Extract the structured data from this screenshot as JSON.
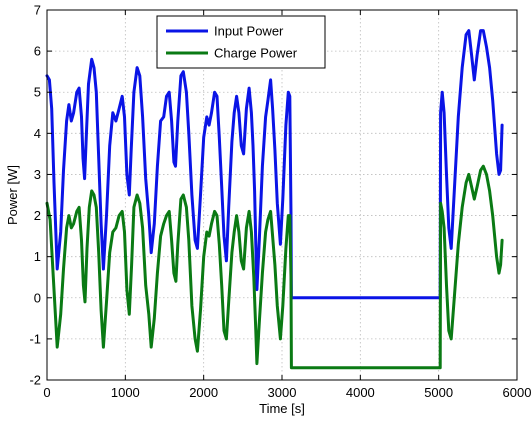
{
  "chart_data": {
    "type": "line",
    "xlabel": "Time [s]",
    "ylabel": "Power [W]",
    "xlim": [
      0,
      6000
    ],
    "ylim": [
      -2,
      7
    ],
    "xticks": [
      "0",
      "1000",
      "2000",
      "3000",
      "4000",
      "5000",
      "6000"
    ],
    "yticks": [
      "-2",
      "-1",
      "0",
      "1",
      "2",
      "3",
      "4",
      "5",
      "6",
      "7"
    ],
    "grid": true,
    "legend_position": "top-center",
    "series": [
      {
        "name": "Input Power",
        "color": "#0a14e6",
        "points": [
          [
            0,
            5.4
          ],
          [
            30,
            5.3
          ],
          [
            60,
            4.6
          ],
          [
            90,
            2.8
          ],
          [
            130,
            0.7
          ],
          [
            175,
            1.6
          ],
          [
            210,
            3.1
          ],
          [
            250,
            4.3
          ],
          [
            280,
            4.7
          ],
          [
            310,
            4.3
          ],
          [
            340,
            4.5
          ],
          [
            380,
            5.0
          ],
          [
            410,
            5.1
          ],
          [
            440,
            4.4
          ],
          [
            460,
            3.4
          ],
          [
            480,
            2.9
          ],
          [
            505,
            4.1
          ],
          [
            530,
            5.2
          ],
          [
            570,
            5.8
          ],
          [
            600,
            5.6
          ],
          [
            630,
            5.0
          ],
          [
            660,
            3.4
          ],
          [
            690,
            1.8
          ],
          [
            720,
            0.7
          ],
          [
            760,
            2.0
          ],
          [
            800,
            3.7
          ],
          [
            840,
            4.5
          ],
          [
            880,
            4.3
          ],
          [
            920,
            4.6
          ],
          [
            960,
            4.9
          ],
          [
            990,
            4.4
          ],
          [
            1020,
            3.0
          ],
          [
            1050,
            2.5
          ],
          [
            1075,
            3.6
          ],
          [
            1110,
            5.0
          ],
          [
            1150,
            5.6
          ],
          [
            1185,
            5.4
          ],
          [
            1220,
            4.4
          ],
          [
            1260,
            2.9
          ],
          [
            1300,
            2.0
          ],
          [
            1330,
            1.1
          ],
          [
            1370,
            1.8
          ],
          [
            1410,
            3.2
          ],
          [
            1450,
            4.3
          ],
          [
            1490,
            4.4
          ],
          [
            1525,
            4.9
          ],
          [
            1560,
            5.0
          ],
          [
            1590,
            4.3
          ],
          [
            1620,
            3.3
          ],
          [
            1640,
            3.2
          ],
          [
            1670,
            4.3
          ],
          [
            1710,
            5.4
          ],
          [
            1740,
            5.5
          ],
          [
            1780,
            5.0
          ],
          [
            1810,
            4.0
          ],
          [
            1850,
            2.5
          ],
          [
            1890,
            1.4
          ],
          [
            1920,
            1.2
          ],
          [
            1960,
            2.5
          ],
          [
            2000,
            3.9
          ],
          [
            2040,
            4.4
          ],
          [
            2070,
            4.2
          ],
          [
            2100,
            4.5
          ],
          [
            2140,
            5.0
          ],
          [
            2170,
            4.9
          ],
          [
            2200,
            3.9
          ],
          [
            2230,
            2.7
          ],
          [
            2260,
            1.5
          ],
          [
            2290,
            0.9
          ],
          [
            2320,
            2.2
          ],
          [
            2360,
            3.8
          ],
          [
            2390,
            4.5
          ],
          [
            2420,
            4.9
          ],
          [
            2450,
            4.5
          ],
          [
            2480,
            3.7
          ],
          [
            2510,
            3.5
          ],
          [
            2545,
            4.6
          ],
          [
            2580,
            5.1
          ],
          [
            2610,
            4.5
          ],
          [
            2630,
            3.7
          ],
          [
            2650,
            2.6
          ],
          [
            2665,
            1.3
          ],
          [
            2680,
            0.2
          ],
          [
            2710,
            1.4
          ],
          [
            2750,
            3.2
          ],
          [
            2790,
            4.4
          ],
          [
            2820,
            4.8
          ],
          [
            2855,
            5.3
          ],
          [
            2880,
            4.6
          ],
          [
            2910,
            3.6
          ],
          [
            2940,
            2.3
          ],
          [
            2980,
            1.3
          ],
          [
            3010,
            2.4
          ],
          [
            3050,
            4.2
          ],
          [
            3080,
            5.0
          ],
          [
            3100,
            4.9
          ],
          [
            3115,
            2.0
          ],
          [
            3120,
            0.0
          ],
          [
            5020,
            0.0
          ],
          [
            5025,
            4.5
          ],
          [
            5045,
            5.0
          ],
          [
            5070,
            4.5
          ],
          [
            5100,
            3.0
          ],
          [
            5130,
            1.7
          ],
          [
            5160,
            1.2
          ],
          [
            5200,
            2.6
          ],
          [
            5250,
            4.4
          ],
          [
            5300,
            5.6
          ],
          [
            5350,
            6.4
          ],
          [
            5385,
            6.5
          ],
          [
            5420,
            5.9
          ],
          [
            5455,
            5.3
          ],
          [
            5490,
            5.9
          ],
          [
            5535,
            6.5
          ],
          [
            5570,
            6.5
          ],
          [
            5610,
            6.1
          ],
          [
            5650,
            5.6
          ],
          [
            5690,
            4.8
          ],
          [
            5740,
            3.5
          ],
          [
            5770,
            3.0
          ],
          [
            5790,
            3.1
          ],
          [
            5810,
            4.2
          ]
        ]
      },
      {
        "name": "Charge Power",
        "color": "#0a7a14",
        "points": [
          [
            0,
            2.3
          ],
          [
            40,
            1.9
          ],
          [
            80,
            0.5
          ],
          [
            130,
            -1.2
          ],
          [
            175,
            -0.4
          ],
          [
            210,
            0.7
          ],
          [
            250,
            1.7
          ],
          [
            280,
            2.0
          ],
          [
            310,
            1.7
          ],
          [
            340,
            1.8
          ],
          [
            380,
            2.1
          ],
          [
            410,
            2.2
          ],
          [
            440,
            1.4
          ],
          [
            465,
            0.3
          ],
          [
            485,
            -0.1
          ],
          [
            510,
            1.2
          ],
          [
            540,
            2.2
          ],
          [
            570,
            2.6
          ],
          [
            600,
            2.5
          ],
          [
            630,
            2.2
          ],
          [
            660,
            1.1
          ],
          [
            690,
            -0.3
          ],
          [
            720,
            -1.2
          ],
          [
            760,
            -0.1
          ],
          [
            800,
            1.1
          ],
          [
            840,
            1.6
          ],
          [
            880,
            1.7
          ],
          [
            920,
            2.0
          ],
          [
            960,
            2.1
          ],
          [
            990,
            1.6
          ],
          [
            1020,
            0.2
          ],
          [
            1050,
            -0.4
          ],
          [
            1080,
            0.8
          ],
          [
            1110,
            2.2
          ],
          [
            1150,
            2.5
          ],
          [
            1185,
            2.3
          ],
          [
            1220,
            1.7
          ],
          [
            1260,
            0.3
          ],
          [
            1300,
            -0.4
          ],
          [
            1330,
            -1.2
          ],
          [
            1370,
            -0.5
          ],
          [
            1410,
            0.6
          ],
          [
            1450,
            1.5
          ],
          [
            1490,
            1.8
          ],
          [
            1525,
            2.0
          ],
          [
            1560,
            2.1
          ],
          [
            1590,
            1.4
          ],
          [
            1620,
            0.6
          ],
          [
            1645,
            0.4
          ],
          [
            1670,
            1.3
          ],
          [
            1710,
            2.4
          ],
          [
            1740,
            2.5
          ],
          [
            1780,
            2.2
          ],
          [
            1810,
            1.4
          ],
          [
            1850,
            -0.2
          ],
          [
            1890,
            -1.0
          ],
          [
            1920,
            -1.3
          ],
          [
            1960,
            -0.3
          ],
          [
            2000,
            1.0
          ],
          [
            2040,
            1.6
          ],
          [
            2070,
            1.5
          ],
          [
            2100,
            1.8
          ],
          [
            2140,
            2.1
          ],
          [
            2170,
            2.0
          ],
          [
            2200,
            1.3
          ],
          [
            2230,
            0.3
          ],
          [
            2260,
            -0.8
          ],
          [
            2290,
            -1.0
          ],
          [
            2320,
            -0.1
          ],
          [
            2360,
            1.1
          ],
          [
            2390,
            1.6
          ],
          [
            2420,
            2.0
          ],
          [
            2450,
            1.6
          ],
          [
            2480,
            0.9
          ],
          [
            2510,
            0.7
          ],
          [
            2545,
            1.7
          ],
          [
            2580,
            2.1
          ],
          [
            2610,
            1.6
          ],
          [
            2640,
            0.5
          ],
          [
            2665,
            -0.8
          ],
          [
            2680,
            -1.6
          ],
          [
            2710,
            -0.6
          ],
          [
            2750,
            0.6
          ],
          [
            2790,
            1.6
          ],
          [
            2820,
            1.9
          ],
          [
            2855,
            2.1
          ],
          [
            2880,
            1.5
          ],
          [
            2910,
            0.8
          ],
          [
            2940,
            -0.2
          ],
          [
            2980,
            -1.0
          ],
          [
            3010,
            -0.2
          ],
          [
            3050,
            1.2
          ],
          [
            3080,
            2.0
          ],
          [
            3100,
            2.0
          ],
          [
            3115,
            0.5
          ],
          [
            3120,
            -1.7
          ],
          [
            5020,
            -1.7
          ],
          [
            5025,
            2.3
          ],
          [
            5045,
            2.1
          ],
          [
            5070,
            1.7
          ],
          [
            5100,
            0.3
          ],
          [
            5130,
            -0.8
          ],
          [
            5160,
            -1.0
          ],
          [
            5200,
            0.0
          ],
          [
            5250,
            1.3
          ],
          [
            5300,
            2.2
          ],
          [
            5350,
            2.8
          ],
          [
            5385,
            3.0
          ],
          [
            5420,
            2.7
          ],
          [
            5455,
            2.4
          ],
          [
            5490,
            2.7
          ],
          [
            5535,
            3.1
          ],
          [
            5570,
            3.2
          ],
          [
            5610,
            3.0
          ],
          [
            5650,
            2.6
          ],
          [
            5690,
            2.0
          ],
          [
            5740,
            1.0
          ],
          [
            5770,
            0.6
          ],
          [
            5790,
            0.8
          ],
          [
            5810,
            1.4
          ]
        ]
      }
    ]
  }
}
